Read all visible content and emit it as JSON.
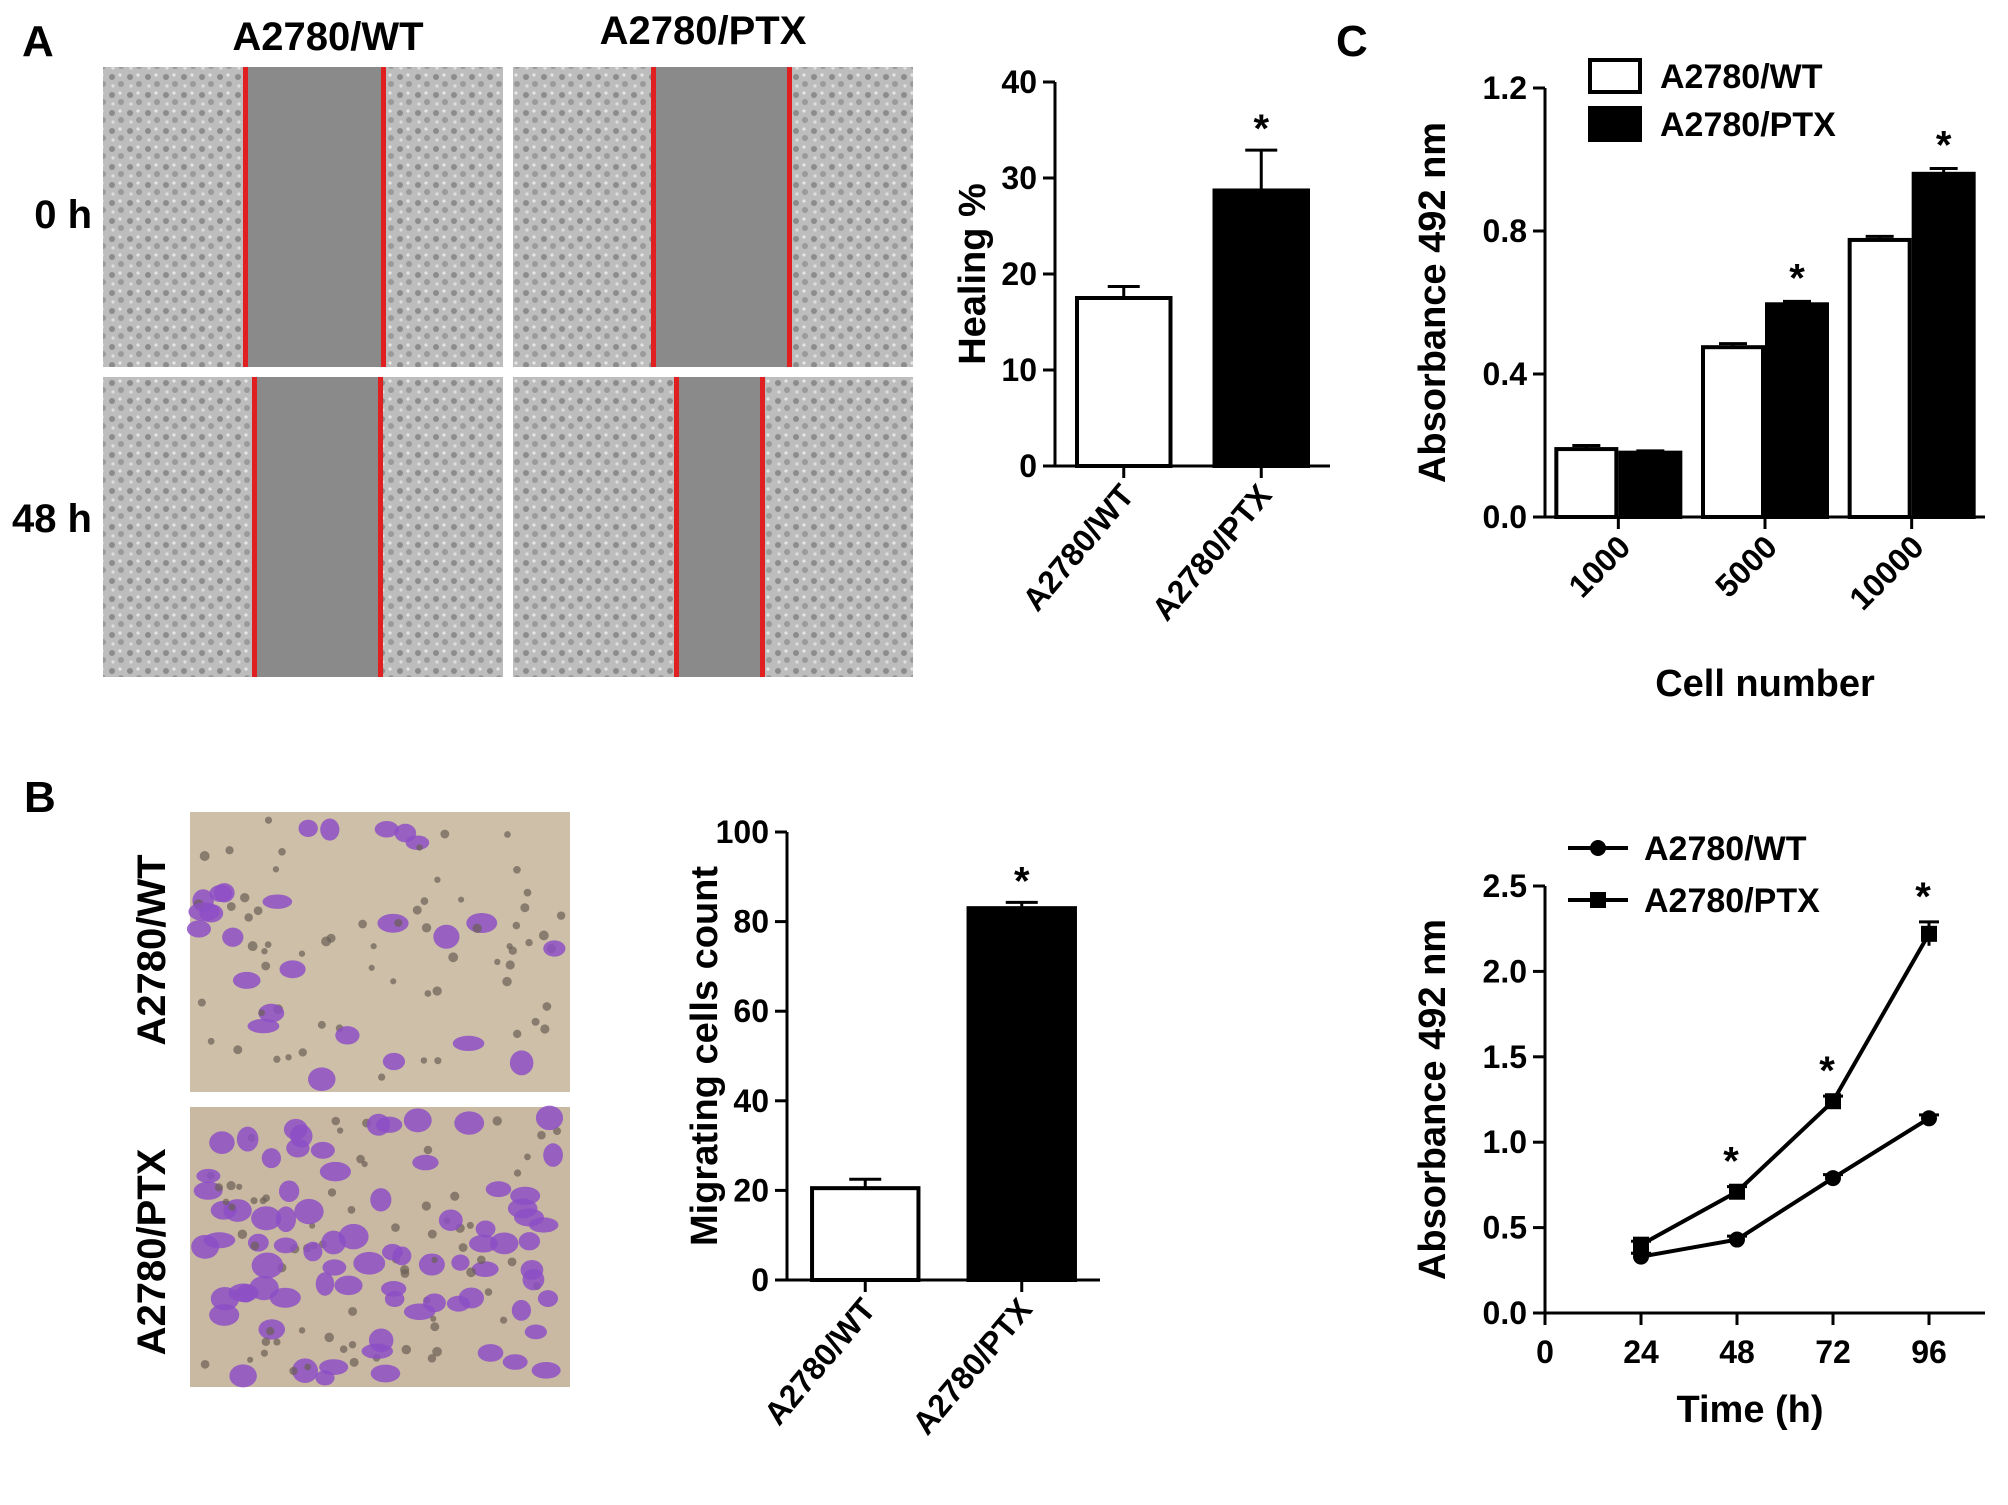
{
  "panels": {
    "a_letter": "A",
    "b_letter": "B",
    "c_letter": "C"
  },
  "micrographs": {
    "a_col_wt": "A2780/WT",
    "a_col_ptx": "A2780/PTX",
    "a_row_0h": "0 h",
    "a_row_48h": "48 h",
    "b_row_wt": "A2780/WT",
    "b_row_ptx": "A2780/PTX",
    "scratch_color": "#e02020",
    "scratch_gap_color": "#8a8a8a",
    "phase_bg": "#b9b9b9",
    "stain_bg": "#cdbfa8",
    "stain_cell": "#8d4fc6"
  },
  "chart_data": [
    {
      "id": "healing",
      "type": "bar",
      "categories": [
        "A2780/WT",
        "A2780/PTX"
      ],
      "values": [
        17.5,
        28.7
      ],
      "errors": [
        1.2,
        4.2
      ],
      "fills": [
        "#ffffff",
        "#000000"
      ],
      "significance": [
        "",
        "*"
      ],
      "ylabel": "Healing %",
      "ylim": [
        0,
        40
      ],
      "yticks": [
        "0",
        "10",
        "20",
        "30",
        "40"
      ]
    },
    {
      "id": "migration",
      "type": "bar",
      "categories": [
        "A2780/WT",
        "A2780/PTX"
      ],
      "values": [
        20.5,
        83
      ],
      "errors": [
        2,
        1.3
      ],
      "fills": [
        "#ffffff",
        "#000000"
      ],
      "significance": [
        "",
        "*"
      ],
      "ylabel": "Migrating cells count",
      "ylim": [
        0,
        100
      ],
      "yticks": [
        "0",
        "20",
        "40",
        "60",
        "80",
        "100"
      ]
    },
    {
      "id": "absorbance_cells",
      "type": "bar",
      "categories": [
        "1000",
        "5000",
        "10000"
      ],
      "series": [
        {
          "name": "A2780/WT",
          "values": [
            0.19,
            0.475,
            0.775
          ],
          "errors": [
            0.01,
            0.01,
            0.01
          ],
          "fill": "#ffffff",
          "significance": [
            "",
            "",
            ""
          ]
        },
        {
          "name": "A2780/PTX",
          "values": [
            0.18,
            0.595,
            0.96
          ],
          "errors": [
            0.005,
            0.008,
            0.015
          ],
          "fill": "#000000",
          "significance": [
            "",
            "*",
            "*"
          ]
        }
      ],
      "xlabel": "Cell number",
      "ylabel": "Absorbance 492 nm",
      "ylim": [
        0,
        1.2
      ],
      "yticks": [
        "0.0",
        "0.4",
        "0.8",
        "1.2"
      ],
      "legend": "top-left"
    },
    {
      "id": "absorbance_time",
      "type": "line",
      "x": [
        24,
        48,
        72,
        96
      ],
      "series": [
        {
          "name": "A2780/WT",
          "values": [
            0.33,
            0.43,
            0.79,
            1.14
          ],
          "errors": [
            0.02,
            0.02,
            0.02,
            0.02
          ],
          "marker": "circle",
          "significance": [
            "",
            "",
            "",
            ""
          ]
        },
        {
          "name": "A2780/PTX",
          "values": [
            0.4,
            0.71,
            1.24,
            2.22
          ],
          "errors": [
            0.02,
            0.03,
            0.03,
            0.07
          ],
          "marker": "square",
          "significance": [
            "",
            "*",
            "*",
            "*"
          ]
        }
      ],
      "xlabel": "Time (h)",
      "ylabel": "Absorbance 492 nm",
      "xlim": [
        0,
        110
      ],
      "xticks": [
        "0",
        "24",
        "48",
        "72",
        "96"
      ],
      "ylim": [
        0,
        2.5
      ],
      "yticks": [
        "0.0",
        "0.5",
        "1.0",
        "1.5",
        "2.0",
        "2.5"
      ],
      "legend": "top-left"
    }
  ]
}
